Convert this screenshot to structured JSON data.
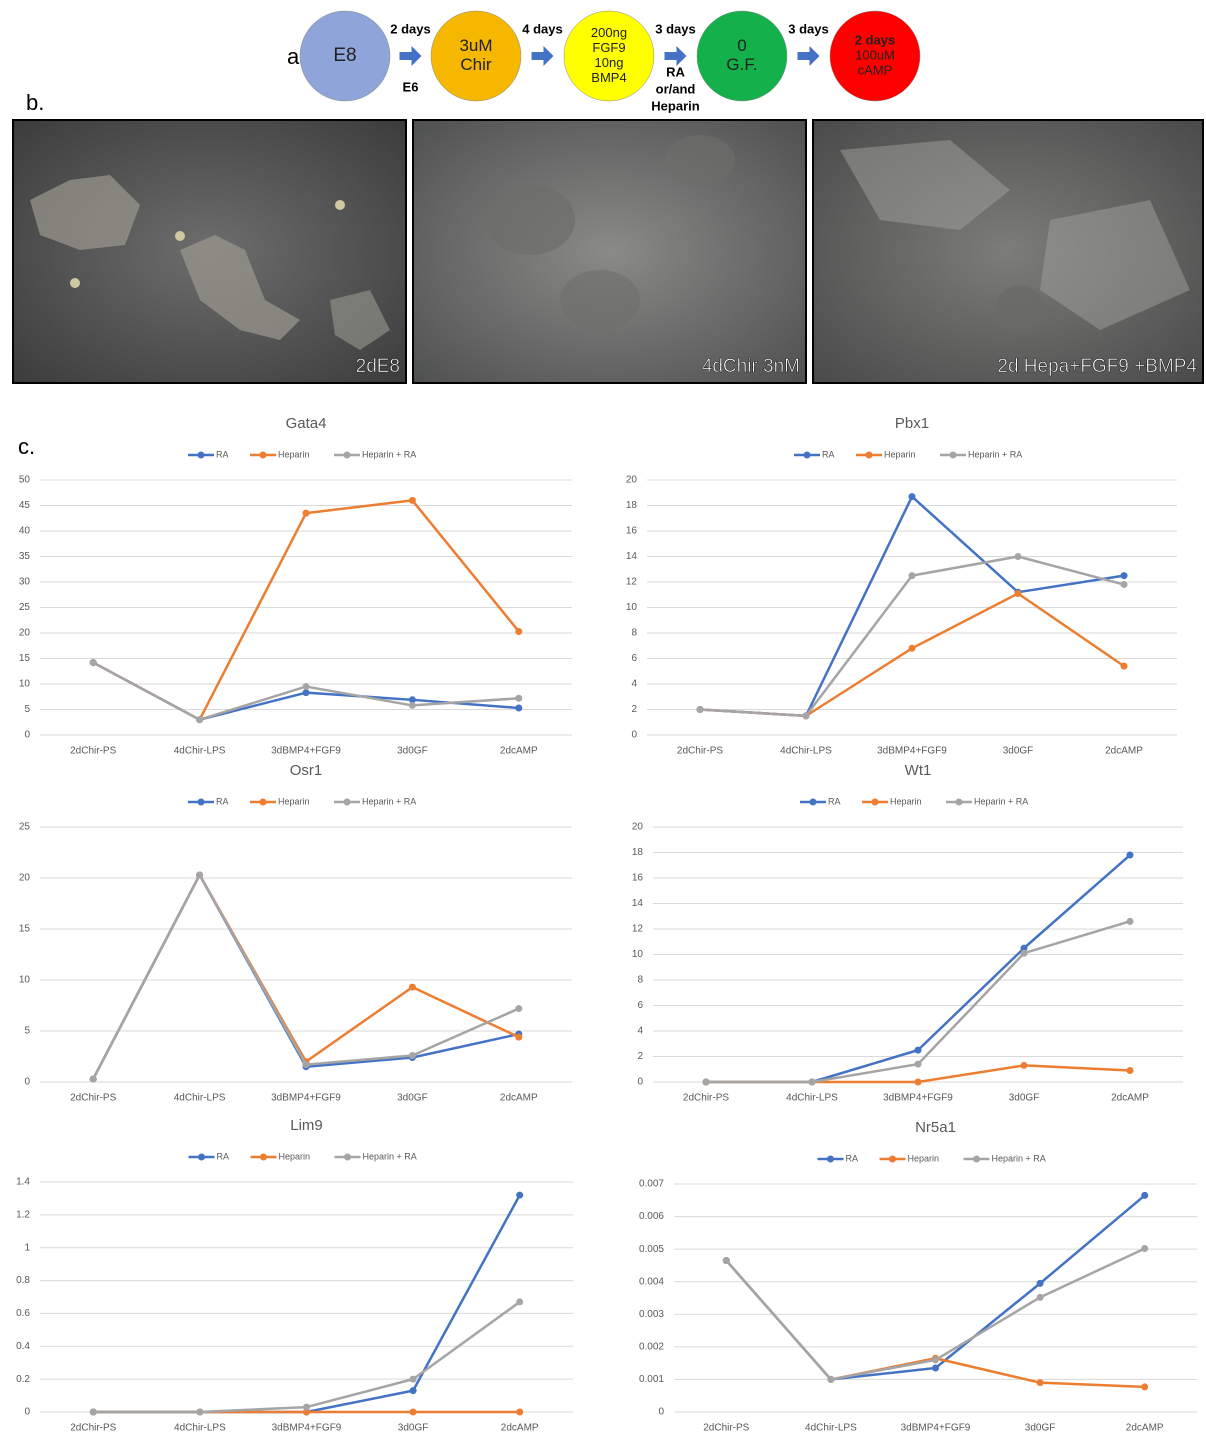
{
  "panels": {
    "a": "a.",
    "b": "b.",
    "c": "c."
  },
  "diagram": {
    "stages": [
      {
        "lines": [
          "E8"
        ],
        "color": "#8fa4d8"
      },
      {
        "lines": [
          "3uM",
          "Chir"
        ],
        "color": "#f5b700"
      },
      {
        "lines": [
          "200ng",
          "FGF9",
          "10ng",
          "BMP4"
        ],
        "color": "#ffff00"
      },
      {
        "lines": [
          "0",
          "G.F."
        ],
        "color": "#14b04b"
      },
      {
        "lines": [
          "2 days",
          "100uM",
          "cAMP"
        ],
        "color": "#ff0000"
      }
    ],
    "steps": [
      {
        "above": "2 days",
        "below": [
          "E6"
        ]
      },
      {
        "above": "4 days",
        "below": []
      },
      {
        "above": "3 days",
        "below": [
          "RA",
          "or/and",
          "Heparin"
        ]
      },
      {
        "above": "3 days",
        "below": []
      }
    ]
  },
  "images": [
    {
      "caption": "2dE8"
    },
    {
      "caption": "4dChir 3nM"
    },
    {
      "caption": "2d Hepa+FGF9 +BMP4"
    }
  ],
  "chart_data": [
    {
      "type": "line",
      "title": "Gata4",
      "categories": [
        "2dChir-PS",
        "4dChir-LPS",
        "3dBMP4+FGF9",
        "3d0GF",
        "2dcAMP"
      ],
      "series": [
        {
          "name": "RA",
          "color": "#4472c4",
          "values": [
            14.2,
            3,
            8.3,
            6.9,
            5.3
          ]
        },
        {
          "name": "Heparin",
          "color": "#ed7d31",
          "values": [
            14.2,
            3,
            43.5,
            46,
            20.3
          ]
        },
        {
          "name": "Heparin + RA",
          "color": "#a5a5a5",
          "values": [
            14.2,
            3,
            9.5,
            5.8,
            7.2
          ]
        }
      ],
      "ylim": [
        0,
        50
      ],
      "yticks": [
        0,
        5,
        10,
        15,
        20,
        25,
        30,
        35,
        40,
        45,
        50
      ],
      "grid": true,
      "legend": "top"
    },
    {
      "type": "line",
      "title": "Pbx1",
      "categories": [
        "2dChir-PS",
        "4dChir-LPS",
        "3dBMP4+FGF9",
        "3d0GF",
        "2dcAMP"
      ],
      "series": [
        {
          "name": "RA",
          "color": "#4472c4",
          "values": [
            2,
            1.5,
            18.7,
            11.2,
            12.5
          ]
        },
        {
          "name": "Heparin",
          "color": "#ed7d31",
          "values": [
            2,
            1.5,
            6.8,
            11.1,
            5.4
          ]
        },
        {
          "name": "Heparin + RA",
          "color": "#a5a5a5",
          "values": [
            2,
            1.5,
            12.5,
            14,
            11.8
          ]
        }
      ],
      "ylim": [
        0,
        20
      ],
      "yticks": [
        0,
        2,
        4,
        6,
        8,
        10,
        12,
        14,
        16,
        18,
        20
      ],
      "grid": true,
      "legend": "top"
    },
    {
      "type": "line",
      "title": "Osr1",
      "categories": [
        "2dChir-PS",
        "4dChir-LPS",
        "3dBMP4+FGF9",
        "3d0GF",
        "2dcAMP"
      ],
      "series": [
        {
          "name": "RA",
          "color": "#4472c4",
          "values": [
            0.3,
            20.3,
            1.5,
            2.4,
            4.7
          ]
        },
        {
          "name": "Heparin",
          "color": "#ed7d31",
          "values": [
            0.3,
            20.3,
            2,
            9.3,
            4.4
          ]
        },
        {
          "name": "Heparin + RA",
          "color": "#a5a5a5",
          "values": [
            0.3,
            20.3,
            1.7,
            2.6,
            7.2
          ]
        }
      ],
      "ylim": [
        0,
        25
      ],
      "yticks": [
        0,
        5,
        10,
        15,
        20,
        25
      ],
      "grid": true,
      "legend": "top"
    },
    {
      "type": "line",
      "title": "Wt1",
      "categories": [
        "2dChir-PS",
        "4dChir-LPS",
        "3dBMP4+FGF9",
        "3d0GF",
        "2dcAMP"
      ],
      "series": [
        {
          "name": "RA",
          "color": "#4472c4",
          "values": [
            0,
            0,
            2.5,
            10.5,
            17.8
          ]
        },
        {
          "name": "Heparin",
          "color": "#ed7d31",
          "values": [
            0,
            0,
            0,
            1.3,
            0.9
          ]
        },
        {
          "name": "Heparin + RA",
          "color": "#a5a5a5",
          "values": [
            0,
            0,
            1.4,
            10.1,
            12.6
          ]
        }
      ],
      "ylim": [
        0,
        20
      ],
      "yticks": [
        0,
        2,
        4,
        6,
        8,
        10,
        12,
        14,
        16,
        18,
        20
      ],
      "grid": true,
      "legend": "top"
    },
    {
      "type": "line",
      "title": "Lim9",
      "categories": [
        "2dChir-PS",
        "4dChir-LPS",
        "3dBMP4+FGF9",
        "3d0GF",
        "2dcAMP"
      ],
      "series": [
        {
          "name": "RA",
          "color": "#4472c4",
          "values": [
            0,
            0,
            0,
            0.13,
            1.32
          ]
        },
        {
          "name": "Heparin",
          "color": "#ed7d31",
          "values": [
            0,
            0,
            0,
            0,
            0
          ]
        },
        {
          "name": "Heparin + RA",
          "color": "#a5a5a5",
          "values": [
            0,
            0,
            0.03,
            0.2,
            0.67
          ]
        }
      ],
      "ylim": [
        0,
        1.4
      ],
      "yticks": [
        0,
        0.2,
        0.4,
        0.6,
        0.8,
        1,
        1.2,
        1.4
      ],
      "grid": true,
      "legend": "top"
    },
    {
      "type": "line",
      "title": "Nr5a1",
      "categories": [
        "2dChir-PS",
        "4dChir-LPS",
        "3dBMP4+FGF9",
        "3d0GF",
        "2dcAMP"
      ],
      "series": [
        {
          "name": "RA",
          "color": "#4472c4",
          "values": [
            0.00465,
            0.001,
            0.00135,
            0.00395,
            0.00665
          ]
        },
        {
          "name": "Heparin",
          "color": "#ed7d31",
          "values": [
            0.00465,
            0.001,
            0.00165,
            0.0009,
            0.00077
          ]
        },
        {
          "name": "Heparin + RA",
          "color": "#a5a5a5",
          "values": [
            0.00465,
            0.001,
            0.0016,
            0.00352,
            0.00502
          ]
        }
      ],
      "ylim": [
        0,
        0.007
      ],
      "yticks": [
        0,
        0.001,
        0.002,
        0.003,
        0.004,
        0.005,
        0.006,
        0.007
      ],
      "grid": true,
      "legend": "top"
    }
  ]
}
